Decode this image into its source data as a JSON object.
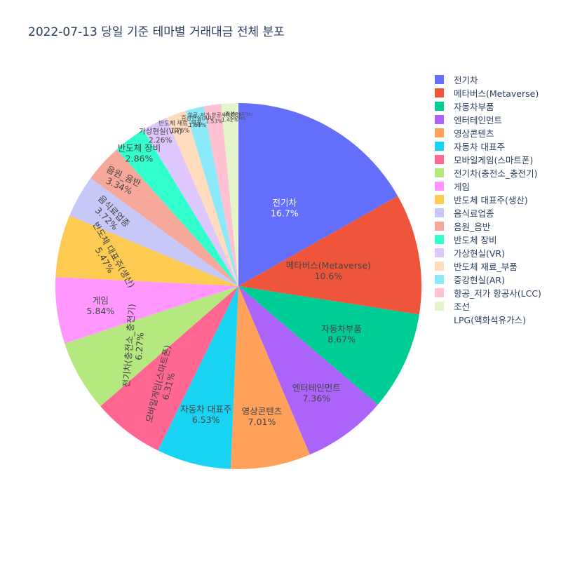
{
  "title": "2022-07-13 당일 기준 테마별 거래대금 전체 분포",
  "chart_data": {
    "type": "pie",
    "title": "2022-07-13 당일 기준 테마별 거래대금 전체 분포",
    "legend_position": "right",
    "slices": [
      {
        "label": "전기차",
        "value": 16.7,
        "text": "16.7%",
        "color": "#636efa",
        "text_color": "#ffffff"
      },
      {
        "label": "메타버스(Metaverse)",
        "value": 10.6,
        "text": "10.6%",
        "color": "#ef553b",
        "text_color": "#444444"
      },
      {
        "label": "자동차부품",
        "value": 8.67,
        "text": "8.67%",
        "color": "#00cc96",
        "text_color": "#444444"
      },
      {
        "label": "엔터테인먼트",
        "value": 7.36,
        "text": "7.36%",
        "color": "#ab63fa",
        "text_color": "#444444"
      },
      {
        "label": "영상콘텐츠",
        "value": 7.01,
        "text": "7.01%",
        "color": "#ffa15a",
        "text_color": "#444444"
      },
      {
        "label": "자동차 대표주",
        "value": 6.53,
        "text": "6.53%",
        "color": "#19d3f3",
        "text_color": "#444444"
      },
      {
        "label": "모바일게임(스마트폰)",
        "value": 6.31,
        "text": "6.31%",
        "color": "#ff6692",
        "text_color": "#444444"
      },
      {
        "label": "전기차(충전소_충전기)",
        "value": 6.27,
        "text": "6.27%",
        "color": "#b6e880",
        "text_color": "#444444"
      },
      {
        "label": "게임",
        "value": 5.84,
        "text": "5.84%",
        "color": "#ff97ff",
        "text_color": "#444444"
      },
      {
        "label": "반도체 대표주(생산)",
        "value": 5.47,
        "text": "5.47%",
        "color": "#fecb52",
        "text_color": "#444444"
      },
      {
        "label": "음식료업종",
        "value": 3.72,
        "text": "3.72%",
        "color": "#c8c8f8",
        "text_color": "#444444"
      },
      {
        "label": "음원_음반",
        "value": 3.34,
        "text": "3.34%",
        "color": "#f6a89a",
        "text_color": "#444444"
      },
      {
        "label": "반도체 장비",
        "value": 2.86,
        "text": "2.86%",
        "color": "#33ffcc",
        "text_color": "#444444"
      },
      {
        "label": "가상현실(VR)",
        "value": 2.26,
        "text": "2.26%",
        "color": "#ddc7fd",
        "text_color": "#444444"
      },
      {
        "label": "반도체 재료_부품",
        "value": 1.76,
        "text": "1.76%",
        "color": "#ffdcbd",
        "text_color": "#444444"
      },
      {
        "label": "증강현실(AR)",
        "value": 1.61,
        "text": "1.61%",
        "color": "#8ce9f9",
        "text_color": "#444444"
      },
      {
        "label": "항공_저가 항공사(LCC)",
        "value": 1.53,
        "text": "1.53%",
        "color": "#ffc2d3",
        "text_color": "#444444"
      },
      {
        "label": "조선",
        "value": 1.42,
        "text": "1.42%",
        "color": "#e5f5cb",
        "text_color": "#444444"
      },
      {
        "label": "LPG(액화석유가스)",
        "value": 0.0794,
        "text": "0.0794%",
        "color": "#ffffff",
        "text_color": "#444444"
      }
    ]
  }
}
